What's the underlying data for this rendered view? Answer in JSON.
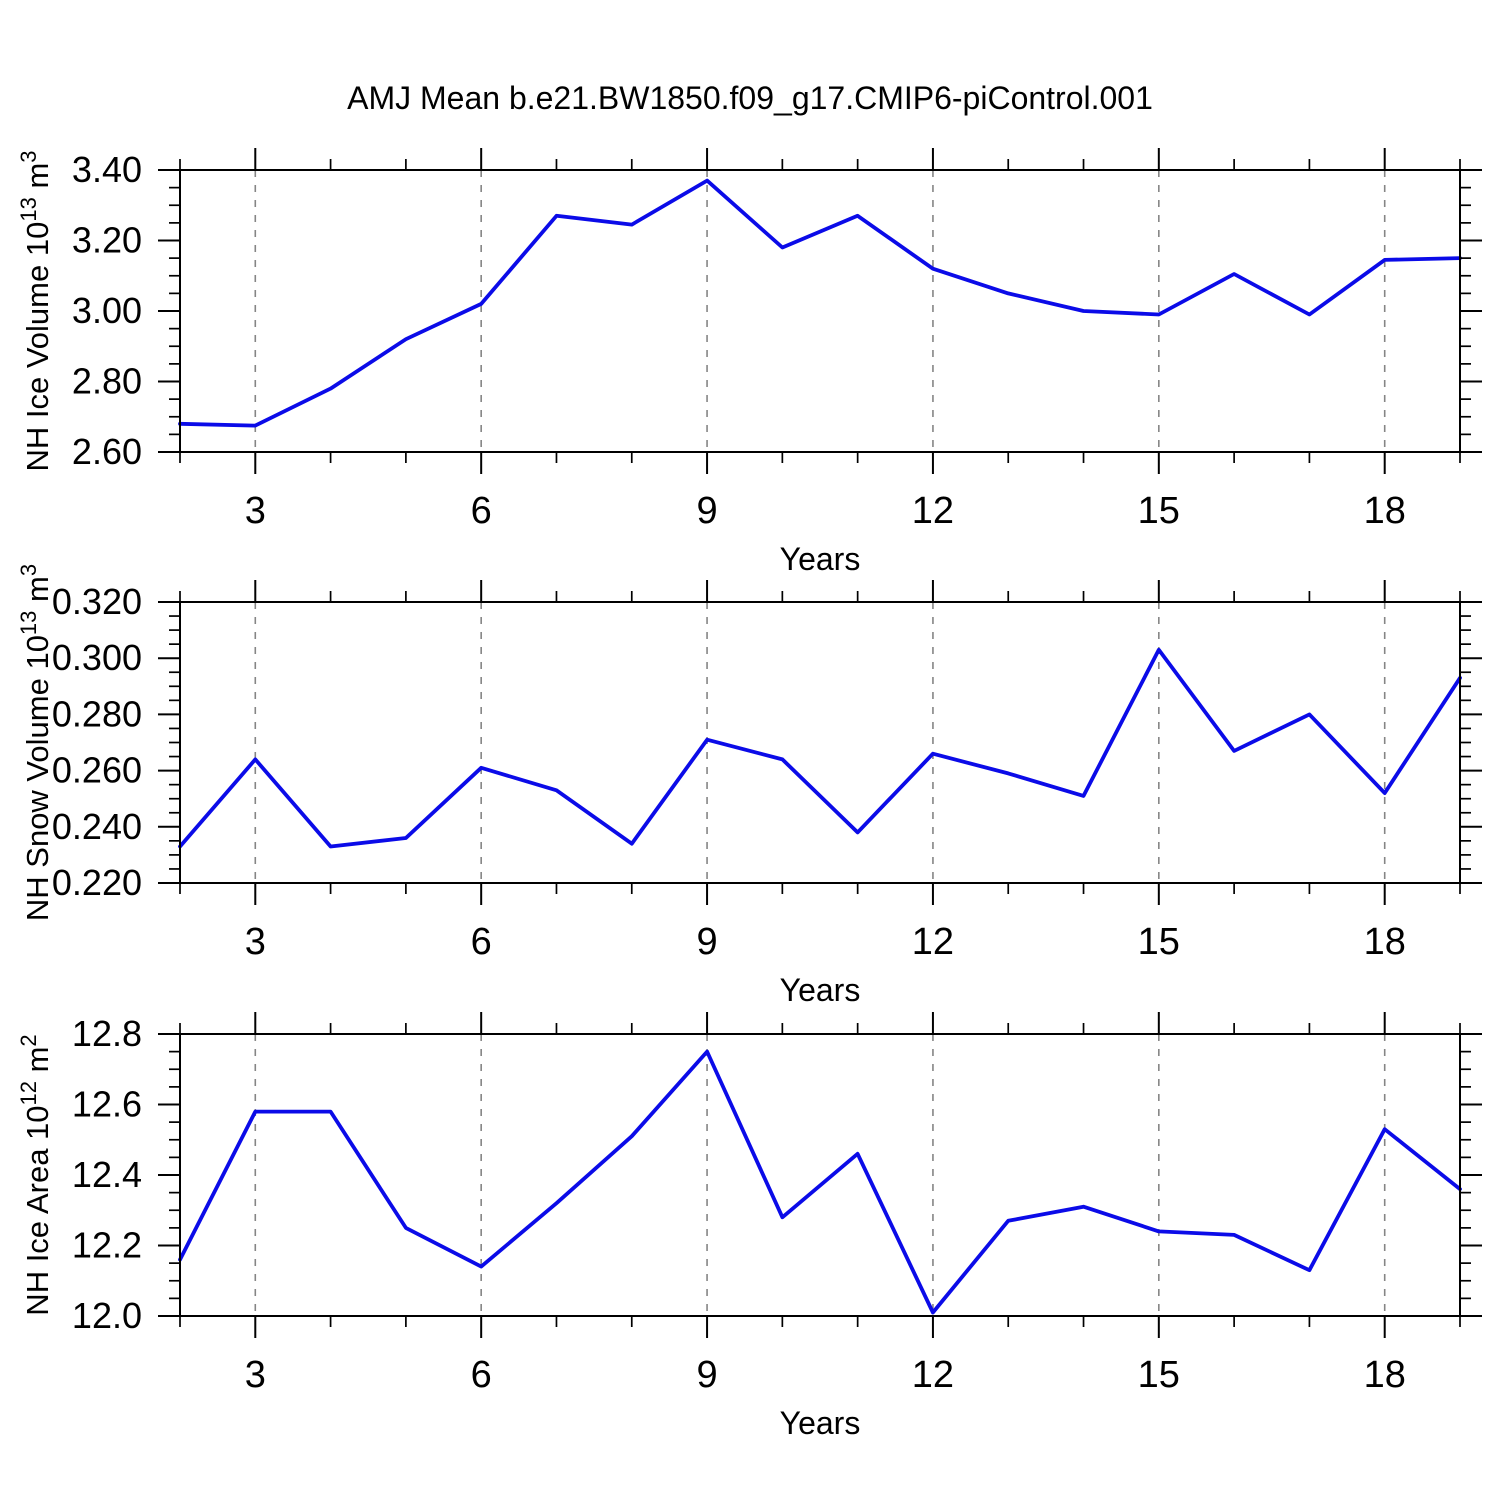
{
  "title": "AMJ Mean b.e21.BW1850.f09_g17.CMIP6-piControl.001",
  "colors": {
    "line": "#0b0be8",
    "grid": "#858585",
    "axis": "#000000",
    "background": "#ffffff"
  },
  "chart_data": [
    {
      "type": "line",
      "x": [
        2,
        3,
        4,
        5,
        6,
        7,
        8,
        9,
        10,
        11,
        12,
        13,
        14,
        15,
        16,
        17,
        18,
        19
      ],
      "series": [
        {
          "name": "NH Ice Volume",
          "values": [
            2.68,
            2.675,
            2.78,
            2.92,
            3.02,
            3.27,
            3.245,
            3.37,
            3.18,
            3.27,
            3.12,
            3.05,
            3.0,
            2.99,
            3.105,
            2.99,
            3.145,
            3.15
          ]
        }
      ],
      "xlabel": "Years",
      "ylabel": "NH Ice Volume 10^13 m^3",
      "ylabel_parts": [
        {
          "t": "NH Ice Volume 10"
        },
        {
          "t": "13",
          "sup": true
        },
        {
          "t": " m"
        },
        {
          "t": "3",
          "sup": true
        }
      ],
      "xlim": [
        2,
        19
      ],
      "ylim": [
        2.6,
        3.4
      ],
      "xticks": [
        3,
        6,
        9,
        12,
        15,
        18
      ],
      "x_minor_step": 1,
      "yticks": [
        {
          "v": 2.6,
          "label": "2.60"
        },
        {
          "v": 2.8,
          "label": "2.80"
        },
        {
          "v": 3.0,
          "label": "3.00"
        },
        {
          "v": 3.2,
          "label": "3.20"
        },
        {
          "v": 3.4,
          "label": "3.40"
        }
      ],
      "y_minor_step": 0.05,
      "grid": "vertical-dashed",
      "legend": "none"
    },
    {
      "type": "line",
      "x": [
        2,
        3,
        4,
        5,
        6,
        7,
        8,
        9,
        10,
        11,
        12,
        13,
        14,
        15,
        16,
        17,
        18,
        19
      ],
      "series": [
        {
          "name": "NH Snow Volume",
          "values": [
            0.233,
            0.264,
            0.233,
            0.236,
            0.261,
            0.253,
            0.234,
            0.271,
            0.264,
            0.238,
            0.266,
            0.259,
            0.251,
            0.303,
            0.267,
            0.28,
            0.252,
            0.293
          ]
        }
      ],
      "xlabel": "Years",
      "ylabel": "NH Snow Volume 10^13 m^3",
      "ylabel_parts": [
        {
          "t": "NH Snow Volume 10"
        },
        {
          "t": "13",
          "sup": true
        },
        {
          "t": " m"
        },
        {
          "t": "3",
          "sup": true
        }
      ],
      "xlim": [
        2,
        19
      ],
      "ylim": [
        0.22,
        0.32
      ],
      "xticks": [
        3,
        6,
        9,
        12,
        15,
        18
      ],
      "x_minor_step": 1,
      "yticks": [
        {
          "v": 0.22,
          "label": "0.220"
        },
        {
          "v": 0.24,
          "label": "0.240"
        },
        {
          "v": 0.26,
          "label": "0.260"
        },
        {
          "v": 0.28,
          "label": "0.280"
        },
        {
          "v": 0.3,
          "label": "0.300"
        },
        {
          "v": 0.32,
          "label": "0.320"
        }
      ],
      "y_minor_step": 0.005,
      "grid": "vertical-dashed",
      "legend": "none"
    },
    {
      "type": "line",
      "x": [
        2,
        3,
        4,
        5,
        6,
        7,
        8,
        9,
        10,
        11,
        12,
        13,
        14,
        15,
        16,
        17,
        18,
        19
      ],
      "series": [
        {
          "name": "NH Ice Area",
          "values": [
            12.16,
            12.58,
            12.58,
            12.25,
            12.14,
            12.32,
            12.51,
            12.75,
            12.28,
            12.46,
            12.01,
            12.27,
            12.31,
            12.24,
            12.23,
            12.13,
            12.53,
            12.36
          ]
        }
      ],
      "xlabel": "Years",
      "ylabel": "NH Ice Area 10^12 m^2",
      "ylabel_parts": [
        {
          "t": "NH Ice Area 10"
        },
        {
          "t": "12",
          "sup": true
        },
        {
          "t": " m"
        },
        {
          "t": "2",
          "sup": true
        }
      ],
      "xlim": [
        2,
        19
      ],
      "ylim": [
        12.0,
        12.8
      ],
      "xticks": [
        3,
        6,
        9,
        12,
        15,
        18
      ],
      "x_minor_step": 1,
      "yticks": [
        {
          "v": 12.0,
          "label": "12.0"
        },
        {
          "v": 12.2,
          "label": "12.2"
        },
        {
          "v": 12.4,
          "label": "12.4"
        },
        {
          "v": 12.6,
          "label": "12.6"
        },
        {
          "v": 12.8,
          "label": "12.8"
        }
      ],
      "y_minor_step": 0.05,
      "grid": "vertical-dashed",
      "legend": "none"
    }
  ]
}
